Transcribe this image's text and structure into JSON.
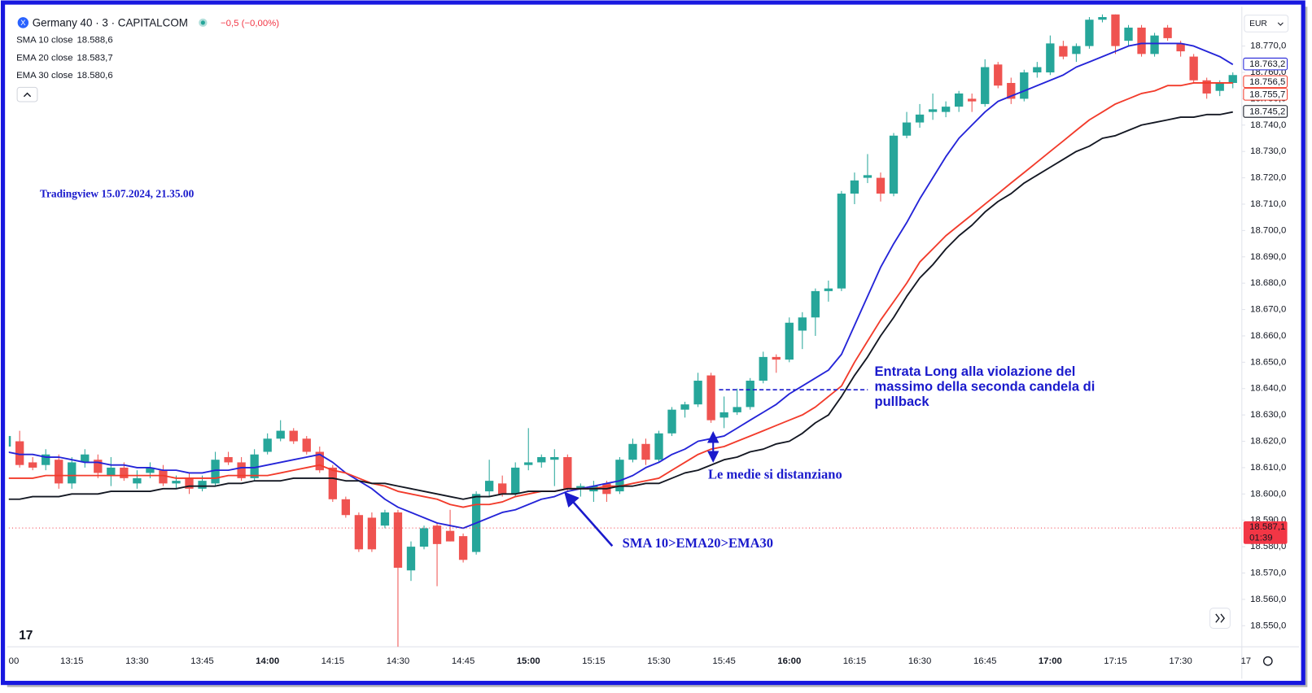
{
  "chart_data": {
    "type": "candlestick",
    "header": {
      "symbol": "Germany 40 · 3 · CAPITALCOM",
      "change": "−0,5 (−0,00%)"
    },
    "currency": "EUR",
    "categories": [
      "00",
      null,
      null,
      null,
      null,
      "13:15",
      null,
      null,
      null,
      null,
      "13:30",
      null,
      null,
      null,
      null,
      "13:45",
      null,
      null,
      null,
      null,
      "14:00",
      null,
      null,
      null,
      null,
      "14:15",
      null,
      null,
      null,
      null,
      "14:30",
      null,
      null,
      null,
      null,
      "14:45",
      null,
      null,
      null,
      null,
      "15:00",
      null,
      null,
      null,
      null,
      "15:15",
      null,
      null,
      null,
      null,
      "15:30",
      null,
      null,
      null,
      null,
      "15:45",
      null,
      null,
      null,
      null,
      "16:00",
      null,
      null,
      null,
      null,
      "16:15",
      null,
      null,
      null,
      null,
      "16:30",
      null,
      null,
      null,
      null,
      "16:45",
      null,
      null,
      null,
      null,
      "17:00",
      null,
      null,
      null,
      null,
      "17:15",
      null,
      null,
      null,
      null,
      "17:30",
      null,
      null,
      null,
      null,
      "17"
    ],
    "open": [
      18618,
      18620,
      18612,
      18611,
      18613,
      18604,
      18612,
      18613,
      18607,
      18610,
      18604,
      18608,
      18609,
      18604,
      18606,
      18602,
      18604,
      18614,
      18612,
      18606,
      18616,
      18621,
      18624,
      18621,
      18616,
      18610,
      18598,
      18592,
      18591,
      18588,
      18593,
      18571,
      18580,
      18588,
      18586,
      18584,
      18578,
      18601,
      18604,
      18600,
      18611,
      18612,
      18613,
      18614,
      18602,
      18601,
      18604,
      18601,
      18613,
      18619,
      18613,
      18623,
      18632,
      18634,
      18645,
      18629,
      18631,
      18633,
      18643,
      18652,
      18651,
      18662,
      18667,
      18677,
      18678,
      18714,
      18720,
      18720,
      18714,
      18736,
      18741,
      18745,
      18745,
      18747,
      18750,
      18748,
      18763,
      18756,
      18750,
      18760,
      18760,
      18770,
      18767,
      18770,
      18780,
      18782,
      18772,
      18777,
      18767,
      18777,
      18771,
      18766,
      18757,
      18753,
      18756,
      null
    ],
    "high": [
      18624,
      18624,
      18614,
      18617,
      18615,
      18614,
      18617,
      18615,
      18614,
      18612,
      18609,
      18612,
      18611,
      18607,
      18608,
      18607,
      18616,
      18616,
      18614,
      18617,
      18623,
      18628,
      18625,
      18622,
      18618,
      18611,
      18599,
      18593,
      18593,
      18594,
      18594,
      18582,
      18588,
      18589,
      18594,
      18585,
      18601,
      18613,
      18607,
      18612,
      18625,
      18615,
      18617,
      18615,
      18604,
      18605,
      18605,
      18614,
      18621,
      18621,
      18624,
      18633,
      18635,
      18646,
      18646,
      18637,
      18640,
      18644,
      18654,
      18653,
      18667,
      18669,
      18678,
      18681,
      18715,
      18722,
      18729,
      18722,
      18737,
      18745,
      18748,
      18752,
      18749,
      18753,
      18752,
      18765,
      18764,
      18758,
      18761,
      18764,
      18774,
      18772,
      18771,
      18781,
      18782,
      18782,
      18778,
      18778,
      18775,
      18778,
      18772,
      18767,
      18758,
      18757,
      18760,
      null
    ],
    "low": [
      18614,
      18610,
      18609,
      18609,
      18602,
      18602,
      18610,
      18606,
      18603,
      18605,
      18602,
      18606,
      18603,
      18602,
      18600,
      18601,
      18603,
      18611,
      18605,
      18605,
      18615,
      18620,
      18619,
      18615,
      18608,
      18597,
      18591,
      18578,
      18578,
      18587,
      18542,
      18567,
      18579,
      18565,
      18582,
      18574,
      18577,
      18599,
      18599,
      18599,
      18609,
      18610,
      18603,
      18601,
      18599,
      18597,
      18597,
      18600,
      18612,
      18611,
      18612,
      18622,
      18629,
      18633,
      18627,
      18625,
      18630,
      18632,
      18642,
      18646,
      18650,
      18655,
      18660,
      18673,
      18677,
      18710,
      18718,
      18711,
      18713,
      18735,
      18739,
      18742,
      18743,
      18745,
      18745,
      18747,
      18754,
      18748,
      18749,
      18758,
      18759,
      18765,
      18764,
      18769,
      18779,
      18767,
      18770,
      18766,
      18766,
      18772,
      18766,
      18756,
      18750,
      18751,
      18754,
      null
    ],
    "close": [
      18622,
      18611,
      18610,
      18615,
      18604,
      18612,
      18615,
      18608,
      18610,
      18606,
      18606,
      18610,
      18604,
      18605,
      18602,
      18605,
      18613,
      18612,
      18606,
      18615,
      18621,
      18624,
      18620,
      18616,
      18609,
      18598,
      18592,
      18579,
      18579,
      18593,
      18572,
      18580,
      18587,
      18581,
      18582,
      18575,
      18600,
      18605,
      18600,
      18610,
      18612,
      18614,
      18614,
      18602,
      18603,
      18603,
      18600,
      18613,
      18619,
      18613,
      18623,
      18632,
      18634,
      18643,
      18628,
      18631,
      18633,
      18643,
      18652,
      18651,
      18665,
      18667,
      18677,
      18678,
      18714,
      18719,
      18721,
      18714,
      18736,
      18741,
      18744,
      18746,
      18747,
      18752,
      18749,
      18762,
      18755,
      18750,
      18760,
      18762,
      18771,
      18766,
      18770,
      18780,
      18781,
      18770,
      18777,
      18767,
      18774,
      18773,
      18768,
      18757,
      18752,
      18756,
      18759,
      null
    ],
    "up_color": "#26a69a",
    "down_color": "#ef5350",
    "series": [
      {
        "name": "SMA 10 close",
        "legend_value": "18.588,6",
        "color": "#2424d8",
        "last_label": {
          "value": 18763.2,
          "label": "18.763,2"
        },
        "values": [
          18616,
          18615,
          18615,
          18614,
          18614,
          18613,
          18612,
          18612,
          18611,
          18611,
          18610,
          18610,
          18609,
          18609,
          18608,
          18608,
          18609,
          18609,
          18610,
          18610,
          18611,
          18612,
          18613,
          18614,
          18615,
          18612,
          18608,
          18605,
          18602,
          18598,
          18595,
          18593,
          18591,
          18589,
          18588,
          18587,
          18589,
          18591,
          18593,
          18594,
          18596,
          18598,
          18599,
          18601,
          18602,
          18603,
          18604,
          18605,
          18607,
          18610,
          18612,
          18615,
          18617,
          18620,
          18621,
          18622,
          18625,
          18628,
          18631,
          18634,
          18638,
          18641,
          18644,
          18647,
          18653,
          18664,
          18675,
          18686,
          18695,
          18703,
          18712,
          18720,
          18728,
          18735,
          18740,
          18745,
          18749,
          18751,
          18753,
          18755,
          18757,
          18759,
          18762,
          18764,
          18766,
          18768,
          18770,
          18771,
          18771,
          18771,
          18771,
          18770,
          18768,
          18766,
          18763,
          null
        ]
      },
      {
        "name": "EMA 20 close",
        "legend_value": "18.583,7",
        "color": "#f23b2b",
        "last_label": {
          "value": 18755.7,
          "label": "18.755,7"
        },
        "values": [
          18606,
          18606,
          18606,
          18607,
          18607,
          18607,
          18607,
          18607,
          18607,
          18607,
          18607,
          18607,
          18607,
          18606,
          18606,
          18606,
          18606,
          18607,
          18607,
          18607,
          18607,
          18608,
          18609,
          18610,
          18611,
          18609,
          18608,
          18606,
          18604,
          18603,
          18601,
          18600,
          18599,
          18598,
          18596,
          18595,
          18596,
          18596,
          18597,
          18599,
          18600,
          18601,
          18601,
          18602,
          18602,
          18602,
          18603,
          18603,
          18604,
          18605,
          18606,
          18609,
          18612,
          18615,
          18617,
          18618,
          18620,
          18622,
          18624,
          18626,
          18628,
          18630,
          18633,
          18637,
          18641,
          18650,
          18658,
          18666,
          18673,
          18680,
          18688,
          18693,
          18698,
          18702,
          18706,
          18710,
          18714,
          18718,
          18722,
          18726,
          18730,
          18734,
          18738,
          18742,
          18745,
          18748,
          18750,
          18752,
          18753,
          18755,
          18755,
          18756,
          18756,
          18756,
          18756,
          null
        ]
      },
      {
        "name": "EMA 30 close",
        "legend_value": "18.580,6",
        "color": "#131722",
        "last_label": {
          "value": 18745.2,
          "label": "18.745,2"
        },
        "values": [
          18598,
          18598,
          18599,
          18599,
          18599,
          18600,
          18600,
          18600,
          18601,
          18601,
          18601,
          18601,
          18602,
          18602,
          18603,
          18603,
          18603,
          18604,
          18604,
          18605,
          18605,
          18605,
          18606,
          18606,
          18606,
          18606,
          18605,
          18605,
          18604,
          18604,
          18603,
          18602,
          18601,
          18600,
          18599,
          18598,
          18599,
          18599,
          18600,
          18600,
          18601,
          18601,
          18601,
          18602,
          18602,
          18602,
          18602,
          18603,
          18603,
          18604,
          18604,
          18606,
          18608,
          18609,
          18611,
          18613,
          18614,
          18616,
          18617,
          18619,
          18620,
          18623,
          18627,
          18630,
          18637,
          18645,
          18652,
          18660,
          18667,
          18675,
          18682,
          18687,
          18693,
          18698,
          18702,
          18707,
          18711,
          18714,
          18718,
          18721,
          18724,
          18727,
          18730,
          18732,
          18735,
          18736,
          18738,
          18740,
          18741,
          18742,
          18743,
          18743,
          18744,
          18744,
          18745,
          null
        ]
      }
    ],
    "price_labels": [
      {
        "value": 18756.5,
        "label": "18.756,5",
        "color": "#f23b2b"
      }
    ],
    "current_price": {
      "value": 18587.1,
      "label": "18.587,1",
      "countdown": "01:39",
      "color": "#f23645"
    },
    "ylim": [
      18542,
      18782.7
    ],
    "yticks": [
      {
        "value": 18550,
        "label": "18.550,0"
      },
      {
        "value": 18560,
        "label": "18.560,0"
      },
      {
        "value": 18570,
        "label": "18.570,0"
      },
      {
        "value": 18580,
        "label": "18.580,0"
      },
      {
        "value": 18590,
        "label": "18.590,0"
      },
      {
        "value": 18600,
        "label": "18.600,0"
      },
      {
        "value": 18610,
        "label": "18.610,0"
      },
      {
        "value": 18620,
        "label": "18.620,0"
      },
      {
        "value": 18630,
        "label": "18.630,0"
      },
      {
        "value": 18640,
        "label": "18.640,0"
      },
      {
        "value": 18650,
        "label": "18.650,0"
      },
      {
        "value": 18660,
        "label": "18.660,0"
      },
      {
        "value": 18670,
        "label": "18.670,0"
      },
      {
        "value": 18680,
        "label": "18.680,0"
      },
      {
        "value": 18690,
        "label": "18.690,0"
      },
      {
        "value": 18700,
        "label": "18.700,0"
      },
      {
        "value": 18710,
        "label": "18.710,0"
      },
      {
        "value": 18720,
        "label": "18.720,0"
      },
      {
        "value": 18730,
        "label": "18.730,0"
      },
      {
        "value": 18740,
        "label": "18.740,0"
      },
      {
        "value": 18750,
        "label": "18.750,0"
      },
      {
        "value": 18760,
        "label": "18.760,0"
      },
      {
        "value": 18770,
        "label": "18.770,0"
      }
    ],
    "grid": false,
    "annotations": {
      "source": "Tradingview 15.07.2024, 21.35.00",
      "entry": [
        "Entrata Long alla violazione del",
        "massimo della seconda candela di",
        "pullback"
      ],
      "spread": "Le medie si distanziano",
      "order": "SMA 10>EMA20>EMA30"
    }
  }
}
